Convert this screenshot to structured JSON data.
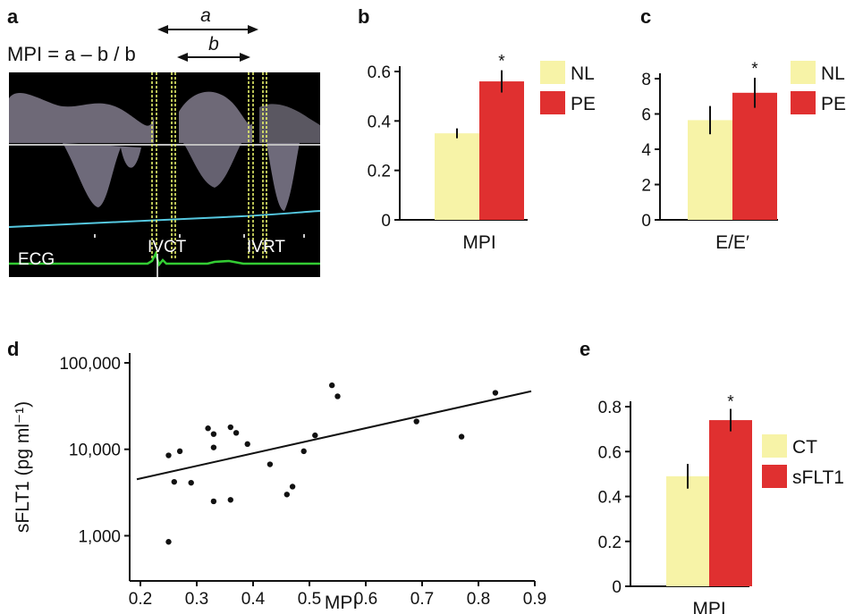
{
  "panels": {
    "a": {
      "label": "a",
      "formula": "MPI = a – b / b",
      "arrow_a": "a",
      "arrow_b": "b",
      "ecg_label": "ECG",
      "ivct_label": "IVCT",
      "ivrt_label": "IVRT"
    },
    "b": {
      "label": "b"
    },
    "c": {
      "label": "c"
    },
    "d": {
      "label": "d"
    },
    "e": {
      "label": "e"
    }
  },
  "colors": {
    "control": "#f7f3a7",
    "treated": "#e03030",
    "ink": "#111111",
    "echo_bg": "#000000",
    "ecg_trace": "#33cc33",
    "baseline": "#55c8e0",
    "timing_marker": "#e6f06a"
  },
  "chart_data": [
    {
      "id": "b",
      "type": "bar",
      "categories": [
        "MPI"
      ],
      "xlabel": "MPI",
      "ylabel": "",
      "ylim": [
        0,
        0.6
      ],
      "yticks": [
        0,
        0.2,
        0.4,
        0.6
      ],
      "ytick_labels": [
        "0",
        "0.2",
        "0.4",
        "0.6"
      ],
      "series": [
        {
          "name": "NL",
          "values": [
            0.35
          ],
          "error": [
            0.02
          ]
        },
        {
          "name": "PE",
          "values": [
            0.56
          ],
          "error": [
            0.045
          ]
        }
      ],
      "annotations": [
        "*"
      ],
      "legend": "top-right"
    },
    {
      "id": "c",
      "type": "bar",
      "categories": [
        "E/E′"
      ],
      "xlabel": "E/E′",
      "ylabel": "",
      "ylim": [
        0,
        8
      ],
      "yticks": [
        0,
        2,
        4,
        6,
        8
      ],
      "ytick_labels": [
        "0",
        "2",
        "4",
        "6",
        "8"
      ],
      "series": [
        {
          "name": "NL",
          "values": [
            5.65
          ],
          "error": [
            0.8
          ]
        },
        {
          "name": "PE",
          "values": [
            7.2
          ],
          "error": [
            0.85
          ]
        }
      ],
      "annotations": [
        "*"
      ],
      "legend": "top-right"
    },
    {
      "id": "d",
      "type": "scatter",
      "xlabel": "MPI",
      "ylabel": "sFLT1 (pg ml⁻¹)",
      "xlim": [
        0.2,
        0.9
      ],
      "xticks": [
        0.2,
        0.3,
        0.4,
        0.5,
        0.6,
        0.7,
        0.8,
        0.9
      ],
      "xtick_labels": [
        "0.2",
        "0.3",
        "0.4",
        "0.5",
        "0.6",
        "0.7",
        "0.8",
        "0.9"
      ],
      "ylim": [
        300,
        100000
      ],
      "yscale": "log",
      "yticks": [
        1000,
        10000,
        100000
      ],
      "ytick_labels": [
        "1,000",
        "10,000",
        "100,000"
      ],
      "points": [
        {
          "x": 0.25,
          "y": 850
        },
        {
          "x": 0.25,
          "y": 8500
        },
        {
          "x": 0.26,
          "y": 4200
        },
        {
          "x": 0.27,
          "y": 9500
        },
        {
          "x": 0.29,
          "y": 4100
        },
        {
          "x": 0.32,
          "y": 17500
        },
        {
          "x": 0.33,
          "y": 15000
        },
        {
          "x": 0.33,
          "y": 10500
        },
        {
          "x": 0.33,
          "y": 2500
        },
        {
          "x": 0.36,
          "y": 18000
        },
        {
          "x": 0.36,
          "y": 2600
        },
        {
          "x": 0.37,
          "y": 15500
        },
        {
          "x": 0.39,
          "y": 11500
        },
        {
          "x": 0.43,
          "y": 6700
        },
        {
          "x": 0.46,
          "y": 3000
        },
        {
          "x": 0.47,
          "y": 3700
        },
        {
          "x": 0.49,
          "y": 9500
        },
        {
          "x": 0.51,
          "y": 14500
        },
        {
          "x": 0.54,
          "y": 55000
        },
        {
          "x": 0.55,
          "y": 41000
        },
        {
          "x": 0.69,
          "y": 21000
        },
        {
          "x": 0.77,
          "y": 14000
        },
        {
          "x": 0.83,
          "y": 45000
        }
      ],
      "fit_line": {
        "x": [
          0.2,
          0.9
        ],
        "y": [
          4500,
          47000
        ]
      }
    },
    {
      "id": "e",
      "type": "bar",
      "categories": [
        "MPI"
      ],
      "xlabel": "MPI",
      "ylabel": "",
      "ylim": [
        0,
        0.8
      ],
      "yticks": [
        0,
        0.2,
        0.4,
        0.6,
        0.8
      ],
      "ytick_labels": [
        "0",
        "0.2",
        "0.4",
        "0.6",
        "0.8"
      ],
      "series": [
        {
          "name": "CT",
          "values": [
            0.49
          ],
          "error": [
            0.055
          ]
        },
        {
          "name": "sFLT1",
          "values": [
            0.74
          ],
          "error": [
            0.05
          ]
        }
      ],
      "annotations": [
        "*"
      ],
      "legend": "right"
    }
  ]
}
